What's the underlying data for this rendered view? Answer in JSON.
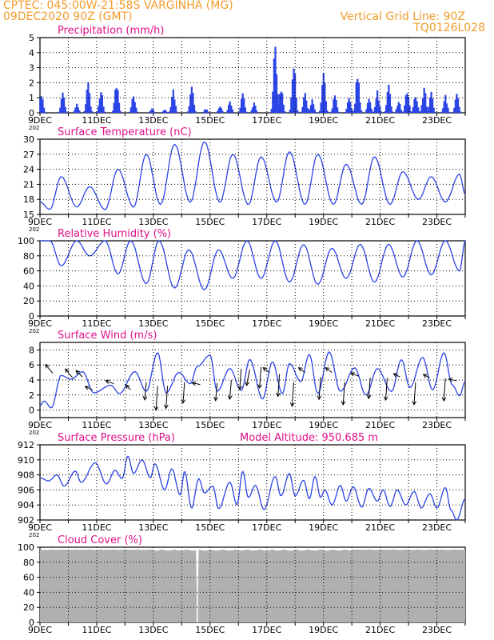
{
  "header": {
    "line1": "CPTEC:   045:00W-21:58S   VARGINHA (MG)",
    "line2": "09DEC2020 90Z (GMT)",
    "right1": "Vertical Grid Line: 90Z",
    "right2": "TQ0126L028"
  },
  "colors": {
    "header": "#f39c2b",
    "panel_title": "#e0118a",
    "series": "#2b44e6",
    "cloud": "#b0b0b0",
    "wind_arrow": "#000000"
  },
  "x_ticks": [
    "9DEC",
    "11DEC",
    "13DEC",
    "15DEC",
    "17DEC",
    "19DEC",
    "21DEC",
    "23DEC"
  ],
  "x_label_suffix": "202",
  "model_altitude": "Model Altitude: 950.685  m",
  "chart_data": [
    {
      "id": "precip",
      "type": "bar",
      "title": "Precipitation (mm/h)",
      "ylim": [
        0,
        5
      ],
      "yticks": [
        "0",
        "1",
        "2",
        "3",
        "4",
        "5"
      ],
      "x_days": [
        0,
        15
      ],
      "bursts": [
        {
          "day": 0.05,
          "peak": 1.3
        },
        {
          "day": 0.8,
          "peak": 1.4
        },
        {
          "day": 1.3,
          "peak": 0.6
        },
        {
          "day": 1.7,
          "peak": 2.1
        },
        {
          "day": 2.15,
          "peak": 1.6
        },
        {
          "day": 2.7,
          "peak": 2.3
        },
        {
          "day": 3.3,
          "peak": 1.3
        },
        {
          "day": 3.95,
          "peak": 0.3
        },
        {
          "day": 4.4,
          "peak": 0.2
        },
        {
          "day": 4.7,
          "peak": 1.6
        },
        {
          "day": 5.35,
          "peak": 2.0
        },
        {
          "day": 5.85,
          "peak": 0.3
        },
        {
          "day": 6.35,
          "peak": 0.5
        },
        {
          "day": 6.7,
          "peak": 0.8
        },
        {
          "day": 7.15,
          "peak": 1.3
        },
        {
          "day": 7.55,
          "peak": 0.7
        },
        {
          "day": 8.3,
          "peak": 5.0
        },
        {
          "day": 8.5,
          "peak": 1.9
        },
        {
          "day": 8.95,
          "peak": 3.6
        },
        {
          "day": 9.35,
          "peak": 1.4
        },
        {
          "day": 9.6,
          "peak": 0.9
        },
        {
          "day": 10.0,
          "peak": 2.7
        },
        {
          "day": 10.4,
          "peak": 1.3
        },
        {
          "day": 10.9,
          "peak": 1.3
        },
        {
          "day": 11.2,
          "peak": 2.8
        },
        {
          "day": 11.6,
          "peak": 1.0
        },
        {
          "day": 11.9,
          "peak": 1.5
        },
        {
          "day": 12.3,
          "peak": 1.9
        },
        {
          "day": 12.65,
          "peak": 0.8
        },
        {
          "day": 12.95,
          "peak": 1.7
        },
        {
          "day": 13.25,
          "peak": 1.3
        },
        {
          "day": 13.55,
          "peak": 1.8
        },
        {
          "day": 13.8,
          "peak": 1.4
        },
        {
          "day": 14.3,
          "peak": 1.2
        },
        {
          "day": 14.7,
          "peak": 1.4
        }
      ]
    },
    {
      "id": "temp",
      "type": "line",
      "title": "Surface Temperature (nC)",
      "ylim": [
        15,
        30
      ],
      "yticks": [
        "15",
        "18",
        "21",
        "24",
        "27",
        "30"
      ],
      "minmax": [
        {
          "day": 0.0,
          "v": 17.5
        },
        {
          "day": 0.35,
          "v": 16.0
        },
        {
          "day": 0.75,
          "v": 22.5
        },
        {
          "day": 1.3,
          "v": 16.5
        },
        {
          "day": 1.75,
          "v": 20.5
        },
        {
          "day": 2.3,
          "v": 16.0
        },
        {
          "day": 2.75,
          "v": 24.0
        },
        {
          "day": 3.3,
          "v": 16.5
        },
        {
          "day": 3.75,
          "v": 27.0
        },
        {
          "day": 4.25,
          "v": 17.0
        },
        {
          "day": 4.75,
          "v": 29.0
        },
        {
          "day": 5.3,
          "v": 17.5
        },
        {
          "day": 5.8,
          "v": 29.5
        },
        {
          "day": 6.35,
          "v": 17.5
        },
        {
          "day": 6.8,
          "v": 27.0
        },
        {
          "day": 7.35,
          "v": 17.0
        },
        {
          "day": 7.8,
          "v": 26.5
        },
        {
          "day": 8.35,
          "v": 17.5
        },
        {
          "day": 8.8,
          "v": 27.5
        },
        {
          "day": 9.35,
          "v": 17.0
        },
        {
          "day": 9.8,
          "v": 27.0
        },
        {
          "day": 10.35,
          "v": 17.0
        },
        {
          "day": 10.8,
          "v": 25.0
        },
        {
          "day": 11.35,
          "v": 17.0
        },
        {
          "day": 11.8,
          "v": 26.5
        },
        {
          "day": 12.35,
          "v": 17.0
        },
        {
          "day": 12.8,
          "v": 23.5
        },
        {
          "day": 13.35,
          "v": 18.0
        },
        {
          "day": 13.8,
          "v": 22.5
        },
        {
          "day": 14.3,
          "v": 17.5
        },
        {
          "day": 14.8,
          "v": 23.0
        },
        {
          "day": 15.0,
          "v": 19.0
        }
      ]
    },
    {
      "id": "rh",
      "type": "line",
      "title": "Relative Humidity (%)",
      "ylim": [
        0,
        100
      ],
      "yticks": [
        "0",
        "20",
        "40",
        "60",
        "80",
        "100"
      ],
      "minmax": [
        {
          "day": 0.0,
          "v": 100
        },
        {
          "day": 0.35,
          "v": 100
        },
        {
          "day": 0.75,
          "v": 67
        },
        {
          "day": 1.3,
          "v": 100
        },
        {
          "day": 1.75,
          "v": 80
        },
        {
          "day": 2.3,
          "v": 100
        },
        {
          "day": 2.75,
          "v": 56
        },
        {
          "day": 3.2,
          "v": 100
        },
        {
          "day": 3.75,
          "v": 43
        },
        {
          "day": 4.2,
          "v": 100
        },
        {
          "day": 4.75,
          "v": 37
        },
        {
          "day": 5.25,
          "v": 88
        },
        {
          "day": 5.8,
          "v": 35
        },
        {
          "day": 6.3,
          "v": 88
        },
        {
          "day": 6.8,
          "v": 50
        },
        {
          "day": 7.3,
          "v": 100
        },
        {
          "day": 7.8,
          "v": 50
        },
        {
          "day": 8.3,
          "v": 100
        },
        {
          "day": 8.8,
          "v": 45
        },
        {
          "day": 9.3,
          "v": 95
        },
        {
          "day": 9.8,
          "v": 42
        },
        {
          "day": 10.3,
          "v": 90
        },
        {
          "day": 10.8,
          "v": 50
        },
        {
          "day": 11.3,
          "v": 95
        },
        {
          "day": 11.8,
          "v": 45
        },
        {
          "day": 12.3,
          "v": 95
        },
        {
          "day": 12.8,
          "v": 52
        },
        {
          "day": 13.3,
          "v": 100
        },
        {
          "day": 13.8,
          "v": 55
        },
        {
          "day": 14.3,
          "v": 100
        },
        {
          "day": 14.8,
          "v": 60
        },
        {
          "day": 15.0,
          "v": 100
        }
      ]
    },
    {
      "id": "wind",
      "type": "line",
      "title": "Surface Wind (m/s)",
      "ylim": [
        -1,
        9
      ],
      "yticks": [
        "0",
        "2",
        "4",
        "6",
        "8"
      ],
      "minmax": [
        {
          "day": 0.0,
          "v": 0.6
        },
        {
          "day": 0.15,
          "v": 1.2
        },
        {
          "day": 0.4,
          "v": 0.3
        },
        {
          "day": 0.75,
          "v": 4.6
        },
        {
          "day": 1.1,
          "v": 4.1
        },
        {
          "day": 1.5,
          "v": 5.1
        },
        {
          "day": 1.9,
          "v": 2.3
        },
        {
          "day": 2.5,
          "v": 3.3
        },
        {
          "day": 2.8,
          "v": 2.2
        },
        {
          "day": 3.35,
          "v": 5.1
        },
        {
          "day": 3.75,
          "v": 2.5
        },
        {
          "day": 4.15,
          "v": 7.6
        },
        {
          "day": 4.45,
          "v": 2.3
        },
        {
          "day": 4.9,
          "v": 5.0
        },
        {
          "day": 5.3,
          "v": 3.5
        },
        {
          "day": 5.55,
          "v": 5.8
        },
        {
          "day": 6.0,
          "v": 7.3
        },
        {
          "day": 6.25,
          "v": 2.5
        },
        {
          "day": 6.7,
          "v": 5.5
        },
        {
          "day": 7.1,
          "v": 2.6
        },
        {
          "day": 7.4,
          "v": 6.7
        },
        {
          "day": 7.85,
          "v": 1.5
        },
        {
          "day": 8.2,
          "v": 6.4
        },
        {
          "day": 8.55,
          "v": 2.2
        },
        {
          "day": 8.8,
          "v": 6.2
        },
        {
          "day": 9.2,
          "v": 3.8
        },
        {
          "day": 9.5,
          "v": 7.4
        },
        {
          "day": 9.8,
          "v": 2.2
        },
        {
          "day": 10.2,
          "v": 7.7
        },
        {
          "day": 10.6,
          "v": 2.5
        },
        {
          "day": 11.1,
          "v": 5.6
        },
        {
          "day": 11.5,
          "v": 2.0
        },
        {
          "day": 11.9,
          "v": 5.5
        },
        {
          "day": 12.4,
          "v": 2.5
        },
        {
          "day": 12.75,
          "v": 6.7
        },
        {
          "day": 13.05,
          "v": 3.0
        },
        {
          "day": 13.5,
          "v": 7.0
        },
        {
          "day": 13.85,
          "v": 2.7
        },
        {
          "day": 14.25,
          "v": 7.6
        },
        {
          "day": 14.55,
          "v": 3.3
        },
        {
          "day": 14.8,
          "v": 1.9
        },
        {
          "day": 15.0,
          "v": 3.8
        }
      ],
      "arrows": [
        {
          "day": 0.45,
          "v": 4.9,
          "u": -0.45,
          "w": 0.55
        },
        {
          "day": 1.15,
          "v": 4.3,
          "u": -0.45,
          "w": 0.55
        },
        {
          "day": 1.5,
          "v": 4.4,
          "u": -0.4,
          "w": 0.4
        },
        {
          "day": 1.85,
          "v": 2.7,
          "u": -0.45,
          "w": 0.2
        },
        {
          "day": 2.6,
          "v": 3.5,
          "u": -0.5,
          "w": 0.2
        },
        {
          "day": 3.2,
          "v": 2.7,
          "u": -0.3,
          "w": 0.3
        },
        {
          "day": 3.75,
          "v": 3.7,
          "u": -0.1,
          "w": -1.1
        },
        {
          "day": 4.15,
          "v": 3.2,
          "u": -0.1,
          "w": -1.5
        },
        {
          "day": 4.5,
          "v": 3.2,
          "u": -0.1,
          "w": -1.4
        },
        {
          "day": 5.1,
          "v": 3.7,
          "u": -0.1,
          "w": -1.3
        },
        {
          "day": 5.65,
          "v": 3.4,
          "u": -0.5,
          "w": 0.1
        },
        {
          "day": 6.25,
          "v": 3.6,
          "u": -0.1,
          "w": -1.1
        },
        {
          "day": 6.75,
          "v": 4.0,
          "u": -0.1,
          "w": -1.2
        },
        {
          "day": 7.1,
          "v": 5.5,
          "u": -0.1,
          "w": -1.3
        },
        {
          "day": 7.4,
          "v": 5.4,
          "u": -0.2,
          "w": -1.0
        },
        {
          "day": 7.8,
          "v": 5.7,
          "u": -0.1,
          "w": -1.3
        },
        {
          "day": 8.1,
          "v": 5.0,
          "u": -0.4,
          "w": 0.3
        },
        {
          "day": 8.45,
          "v": 4.8,
          "u": -0.1,
          "w": -1.4
        },
        {
          "day": 8.95,
          "v": 3.7,
          "u": -0.1,
          "w": -1.5
        },
        {
          "day": 9.35,
          "v": 5.0,
          "u": -0.4,
          "w": 0.3
        },
        {
          "day": 9.9,
          "v": 4.4,
          "u": -0.1,
          "w": -1.4
        },
        {
          "day": 10.3,
          "v": 5.0,
          "u": -0.4,
          "w": 0.3
        },
        {
          "day": 10.75,
          "v": 3.7,
          "u": -0.1,
          "w": -1.4
        },
        {
          "day": 11.25,
          "v": 4.5,
          "u": -0.5,
          "w": 0.2
        },
        {
          "day": 11.65,
          "v": 4.3,
          "u": -0.1,
          "w": -1.3
        },
        {
          "day": 12.25,
          "v": 4.3,
          "u": -0.1,
          "w": -1.4
        },
        {
          "day": 12.7,
          "v": 4.4,
          "u": -0.4,
          "w": 0.2
        },
        {
          "day": 13.25,
          "v": 3.7,
          "u": -0.1,
          "w": -1.4
        },
        {
          "day": 13.75,
          "v": 4.3,
          "u": -0.4,
          "w": 0.2
        },
        {
          "day": 14.3,
          "v": 4.2,
          "u": -0.1,
          "w": -1.4
        },
        {
          "day": 14.7,
          "v": 3.9,
          "u": -0.5,
          "w": 0.1
        }
      ]
    },
    {
      "id": "pres",
      "type": "line",
      "title": "Surface Pressure (hPa)",
      "ylim": [
        902,
        912
      ],
      "yticks": [
        "902",
        "904",
        "906",
        "908",
        "910",
        "912"
      ],
      "minmax": [
        {
          "day": 0.0,
          "v": 907.6
        },
        {
          "day": 0.3,
          "v": 907.2
        },
        {
          "day": 0.6,
          "v": 908.0
        },
        {
          "day": 0.85,
          "v": 906.5
        },
        {
          "day": 1.25,
          "v": 908.5
        },
        {
          "day": 1.45,
          "v": 907.0
        },
        {
          "day": 1.95,
          "v": 909.6
        },
        {
          "day": 2.35,
          "v": 906.8
        },
        {
          "day": 2.65,
          "v": 908.6
        },
        {
          "day": 2.9,
          "v": 907.5
        },
        {
          "day": 3.1,
          "v": 910.5
        },
        {
          "day": 3.3,
          "v": 908.2
        },
        {
          "day": 3.6,
          "v": 910.0
        },
        {
          "day": 3.9,
          "v": 907.6
        },
        {
          "day": 4.05,
          "v": 909.5
        },
        {
          "day": 4.4,
          "v": 906.0
        },
        {
          "day": 4.65,
          "v": 908.8
        },
        {
          "day": 4.95,
          "v": 905.3
        },
        {
          "day": 5.1,
          "v": 908.5
        },
        {
          "day": 5.35,
          "v": 903.6
        },
        {
          "day": 5.6,
          "v": 907.5
        },
        {
          "day": 5.8,
          "v": 905.6
        },
        {
          "day": 6.1,
          "v": 906.5
        },
        {
          "day": 6.3,
          "v": 903.5
        },
        {
          "day": 6.7,
          "v": 907.0
        },
        {
          "day": 6.95,
          "v": 904.0
        },
        {
          "day": 7.15,
          "v": 908.5
        },
        {
          "day": 7.35,
          "v": 905.0
        },
        {
          "day": 7.6,
          "v": 906.6
        },
        {
          "day": 7.9,
          "v": 903.4
        },
        {
          "day": 8.3,
          "v": 907.8
        },
        {
          "day": 8.5,
          "v": 905.2
        },
        {
          "day": 8.8,
          "v": 908.2
        },
        {
          "day": 9.0,
          "v": 905.2
        },
        {
          "day": 9.3,
          "v": 907.3
        },
        {
          "day": 9.5,
          "v": 904.8
        },
        {
          "day": 9.7,
          "v": 907.8
        },
        {
          "day": 9.9,
          "v": 905.0
        },
        {
          "day": 10.05,
          "v": 906.0
        },
        {
          "day": 10.3,
          "v": 904.0
        },
        {
          "day": 10.6,
          "v": 906.6
        },
        {
          "day": 10.8,
          "v": 904.5
        },
        {
          "day": 11.05,
          "v": 906.4
        },
        {
          "day": 11.35,
          "v": 903.7
        },
        {
          "day": 11.6,
          "v": 906.2
        },
        {
          "day": 11.9,
          "v": 904.5
        },
        {
          "day": 12.1,
          "v": 906.0
        },
        {
          "day": 12.35,
          "v": 903.8
        },
        {
          "day": 12.6,
          "v": 906.0
        },
        {
          "day": 12.9,
          "v": 904.0
        },
        {
          "day": 13.2,
          "v": 905.8
        },
        {
          "day": 13.45,
          "v": 903.6
        },
        {
          "day": 13.75,
          "v": 905.5
        },
        {
          "day": 14.0,
          "v": 903.6
        },
        {
          "day": 14.3,
          "v": 906.3
        },
        {
          "day": 14.5,
          "v": 903.3
        },
        {
          "day": 14.7,
          "v": 902.0
        },
        {
          "day": 15.0,
          "v": 904.8
        }
      ]
    },
    {
      "id": "cloud",
      "type": "area",
      "title": "Cloud Cover (%)",
      "ylim": [
        0,
        100
      ],
      "yticks": [
        "0",
        "20",
        "40",
        "60",
        "80",
        "100"
      ],
      "level": 97,
      "gap_day": 5.55
    }
  ]
}
